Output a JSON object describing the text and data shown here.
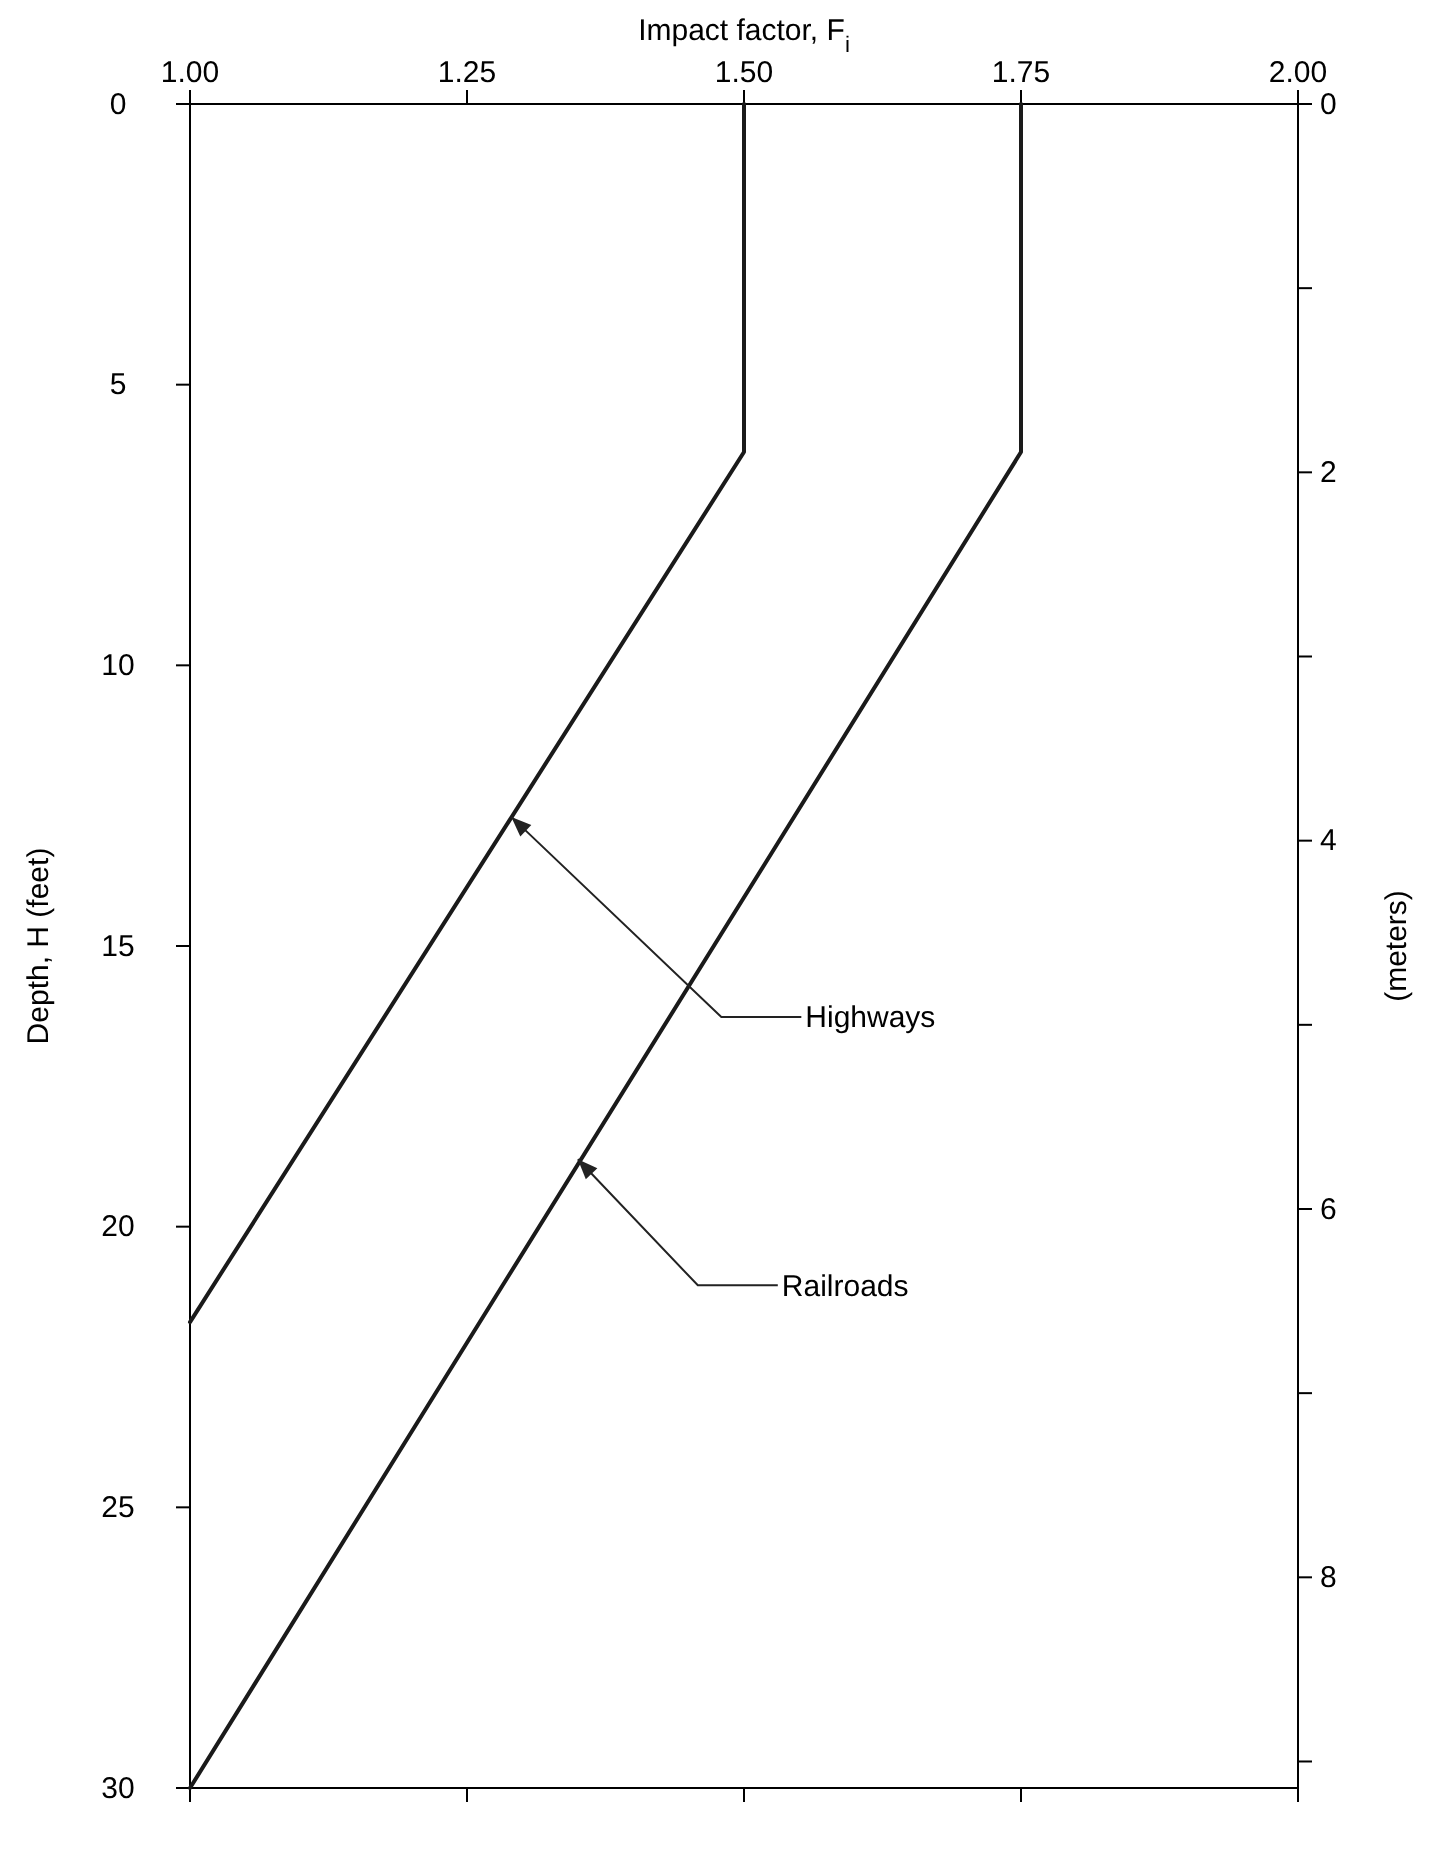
{
  "chart_data": {
    "type": "line",
    "xlabel": "Impact factor, F$_{i}$",
    "ylabel": "Depth, H (feet)",
    "y2label": "(meters)",
    "xlim": [
      1.0,
      2.0
    ],
    "xticks": [
      {
        "value": 1.0,
        "label": "1.00"
      },
      {
        "value": 1.25,
        "label": "1.25"
      },
      {
        "value": 1.5,
        "label": "1.50"
      },
      {
        "value": 1.75,
        "label": "1.75"
      },
      {
        "value": 2.0,
        "label": "2.00"
      }
    ],
    "ylim": [
      30,
      0
    ],
    "yticks": [
      0,
      5,
      10,
      15,
      20,
      25,
      30
    ],
    "y2lim": [
      9.144,
      0
    ],
    "y2ticks": [
      0,
      {
        "value": 1,
        "label": null
      },
      2,
      {
        "value": 3,
        "label": null
      },
      4,
      {
        "value": 5,
        "label": null
      },
      6,
      {
        "value": 7,
        "label": null
      },
      8,
      {
        "value": 9,
        "label": null
      }
    ],
    "grid": false,
    "marker": "none",
    "line_style": "solid",
    "series": [
      {
        "color": "#1a1a1a",
        "x": [
          1.5,
          1.5,
          1.0
        ],
        "values": [
          0,
          6.2,
          21.7
        ]
      },
      {
        "color": "#1a1a1a",
        "x": [
          1.75,
          1.75,
          1.0
        ],
        "values": [
          0,
          6.2,
          30
        ]
      }
    ],
    "annotations": [
      {
        "text": "Highways",
        "x": 1.29,
        "y": 12.7
      },
      {
        "text": "Railroads",
        "x": 1.35,
        "y": 18.8
      }
    ]
  }
}
